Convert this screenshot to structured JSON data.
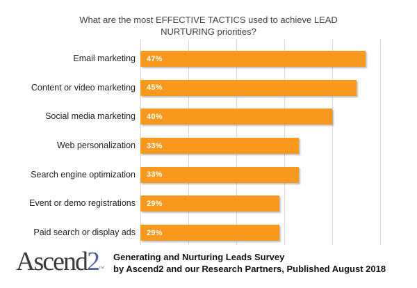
{
  "title": {
    "line1": "What are the most EFFECTIVE TACTICS used to achieve LEAD",
    "line2": "NURTURING priorities?"
  },
  "chart_data": {
    "type": "bar",
    "orientation": "horizontal",
    "title": "What are the most EFFECTIVE TACTICS used to achieve LEAD NURTURING priorities?",
    "categories": [
      "Email marketing",
      "Content or video marketing",
      "Social media marketing",
      "Web personalization",
      "Search engine optimization",
      "Event or demo registrations",
      "Paid search or display ads"
    ],
    "values": [
      47,
      45,
      40,
      33,
      33,
      29,
      29
    ],
    "value_labels": [
      "47%",
      "45%",
      "40%",
      "33%",
      "33%",
      "29%",
      "29%"
    ],
    "xlim": [
      0,
      50
    ],
    "gridline_interval": 10,
    "grid": "vertical-only",
    "legend": "none",
    "xlabel": "",
    "ylabel": ""
  },
  "footer": {
    "logo_main": "Ascend",
    "logo_accent": "2",
    "logo_trademark": "™",
    "source_line1": "Generating and Nurturing Leads Survey",
    "source_line2": "by Ascend2 and our Research Partners, Published August 2018"
  },
  "colors": {
    "background": "#FFFFFF",
    "bar": "#F8981D",
    "gridline": "#D9D9D9",
    "title_text": "#404040",
    "category_text": "#1F1F1F",
    "value_label_text": "#FFFFFF",
    "footer_text": "#111111",
    "logo_main": "#3B3B3D",
    "logo_accent": "#5562A2"
  }
}
